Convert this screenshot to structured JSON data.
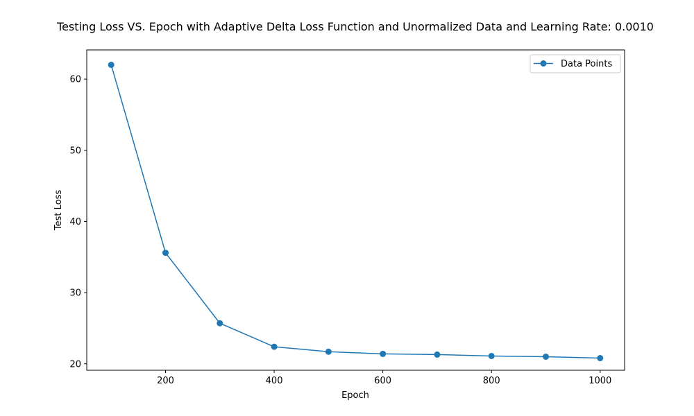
{
  "chart_data": {
    "type": "line",
    "title": "Testing Loss VS. Epoch with Adaptive Delta Loss Function and Unormalized Data and Learning Rate: 0.0010",
    "xlabel": "Epoch",
    "ylabel": "Test Loss",
    "xlim": [
      55,
      1045
    ],
    "ylim": [
      19.1,
      64.1
    ],
    "xticks": [
      200,
      400,
      600,
      800,
      1000
    ],
    "yticks": [
      20,
      30,
      40,
      50,
      60
    ],
    "grid": false,
    "legend_position": "top-right",
    "series": [
      {
        "name": "Data Points",
        "color": "#1f77b4",
        "marker": "circle",
        "x": [
          100,
          200,
          300,
          400,
          500,
          600,
          700,
          800,
          900,
          1000
        ],
        "y": [
          62.0,
          35.6,
          25.7,
          22.4,
          21.7,
          21.4,
          21.3,
          21.1,
          21.0,
          20.8
        ]
      }
    ]
  }
}
